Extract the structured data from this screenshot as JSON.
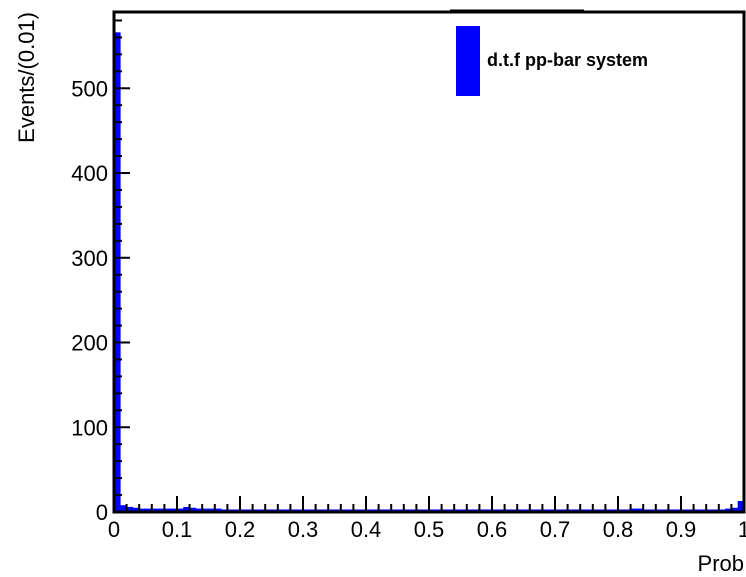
{
  "chart_data": {
    "type": "bar",
    "title": "",
    "xlabel": "Prob",
    "ylabel": "Events/(0.01)",
    "xlim": [
      0,
      1
    ],
    "ylim": [
      0,
      590
    ],
    "bin_width": 0.01,
    "x_ticks": [
      "0",
      "0.1",
      "0.2",
      "0.3",
      "0.4",
      "0.5",
      "0.6",
      "0.7",
      "0.8",
      "0.9",
      "1"
    ],
    "y_ticks": [
      "0",
      "100",
      "200",
      "300",
      "400",
      "500"
    ],
    "grid": false,
    "legend_position": "top-right",
    "series": [
      {
        "name": "d.t.f pp-bar system",
        "color": "#0000ff",
        "values": [
          566,
          8,
          6,
          5,
          4,
          4,
          4,
          4,
          4,
          4,
          4,
          6,
          5,
          4,
          4,
          4,
          4,
          3,
          3,
          3,
          3,
          3,
          3,
          3,
          3,
          3,
          3,
          3,
          3,
          3,
          3,
          3,
          3,
          3,
          3,
          3,
          3,
          3,
          3,
          3,
          3,
          3,
          3,
          3,
          3,
          3,
          3,
          3,
          3,
          3,
          3,
          3,
          3,
          3,
          3,
          3,
          3,
          3,
          3,
          3,
          3,
          3,
          3,
          3,
          3,
          3,
          3,
          3,
          3,
          3,
          3,
          3,
          3,
          3,
          3,
          3,
          3,
          3,
          3,
          3,
          3,
          3,
          4,
          4,
          3,
          3,
          3,
          3,
          3,
          3,
          3,
          3,
          3,
          3,
          3,
          3,
          3,
          4,
          5,
          13
        ]
      }
    ]
  }
}
